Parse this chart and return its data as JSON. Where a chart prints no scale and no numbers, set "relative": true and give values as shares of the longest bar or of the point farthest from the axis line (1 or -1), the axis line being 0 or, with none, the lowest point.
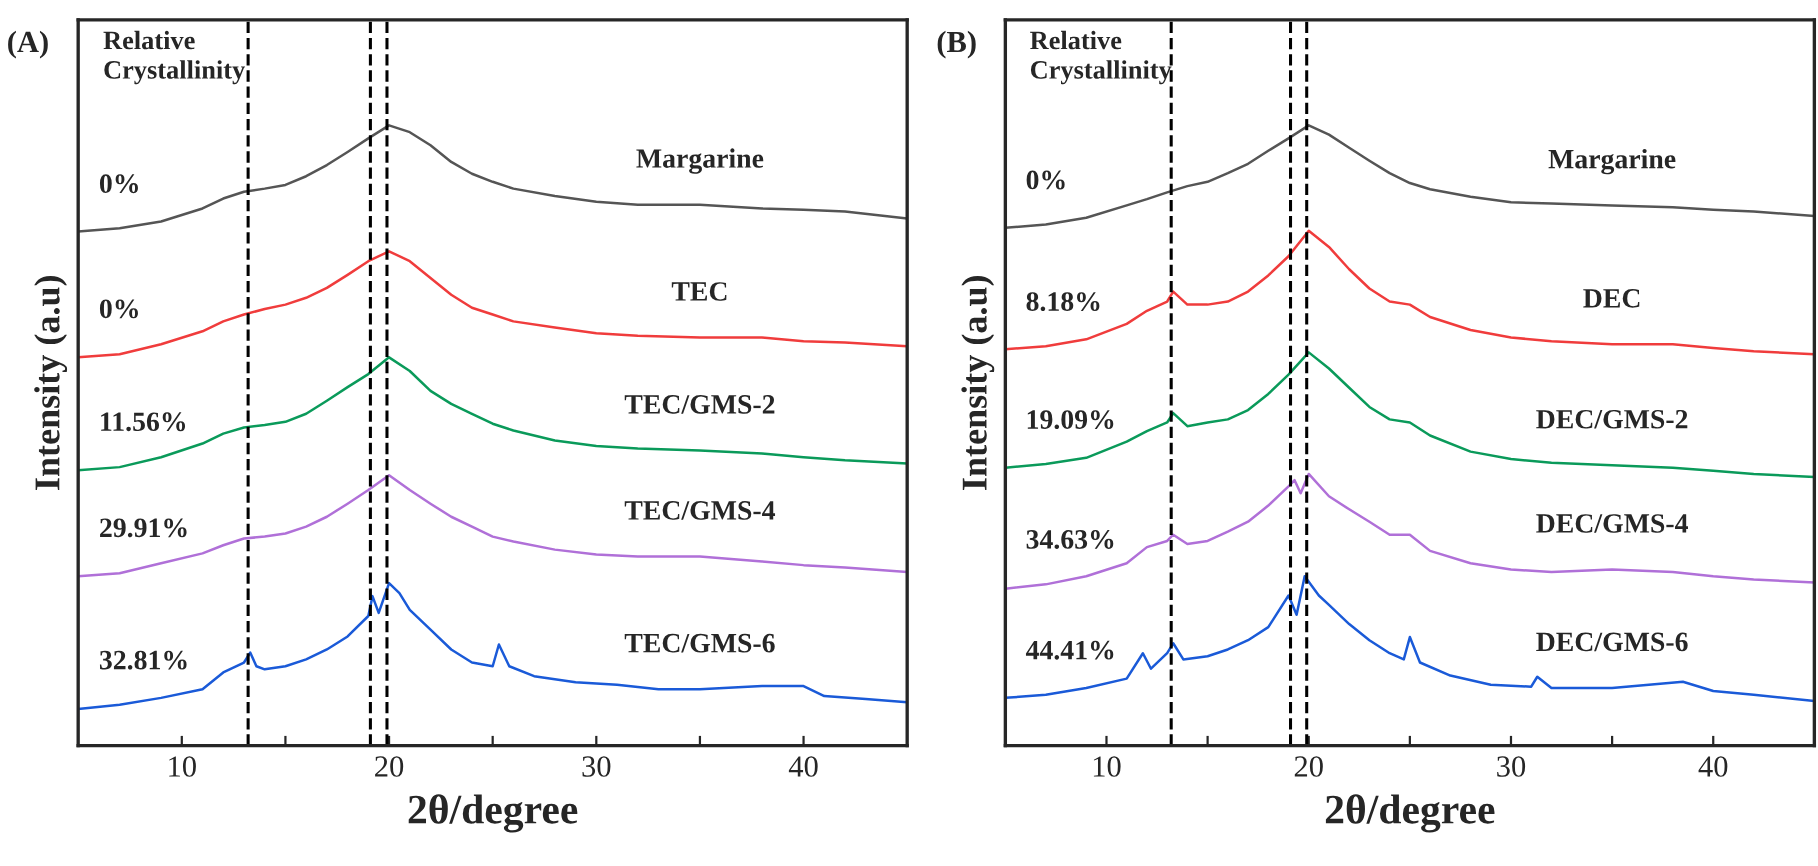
{
  "chart_data": [
    {
      "type": "line",
      "title": "(A)",
      "xlabel": "2θ/degree",
      "ylabel": "Intensity (a.u)",
      "relative": true,
      "xlim": [
        5,
        45
      ],
      "xticks": [
        10,
        {
          "value": 15,
          "label": null
        },
        20,
        {
          "value": 25,
          "label": null
        },
        30,
        {
          "value": 35,
          "label": null
        },
        40
      ],
      "grid": false,
      "legend": false,
      "tick_labels": "x",
      "ref_lines": [
        {
          "axis": "x",
          "value": 13.2,
          "color": "#000000",
          "line_style": "dashed"
        },
        {
          "axis": "x",
          "value": 19.1,
          "color": "#000000",
          "line_style": "dashed"
        },
        {
          "axis": "x",
          "value": 19.9,
          "color": "#000000",
          "line_style": "dashed"
        }
      ],
      "annotations": [
        "Relative\nCrystallinity",
        "0%",
        "0%",
        "11.56%",
        "29.91%",
        "32.81%"
      ],
      "series": [
        {
          "name": "Margarine",
          "color": "#555555",
          "x": [
            5,
            7,
            9,
            11,
            12,
            13,
            14,
            15,
            16,
            17,
            18,
            19,
            20,
            21,
            22,
            23,
            24,
            25,
            26,
            28,
            30,
            32,
            35,
            38,
            40,
            42,
            45
          ],
          "values": [
            0.829,
            0.834,
            0.845,
            0.866,
            0.882,
            0.893,
            0.898,
            0.904,
            0.918,
            0.936,
            0.957,
            0.979,
            1.0,
            0.989,
            0.968,
            0.941,
            0.922,
            0.909,
            0.898,
            0.886,
            0.877,
            0.872,
            0.872,
            0.866,
            0.864,
            0.861,
            0.85
          ]
        },
        {
          "name": "TEC",
          "color": "#f03c3c",
          "x": [
            5,
            7,
            9,
            11,
            12,
            13,
            14,
            15,
            16,
            17,
            18,
            19,
            20,
            21,
            22,
            23,
            24,
            25,
            26,
            28,
            30,
            32,
            35,
            38,
            40,
            42,
            45
          ],
          "values": [
            0.626,
            0.631,
            0.647,
            0.668,
            0.684,
            0.695,
            0.704,
            0.711,
            0.722,
            0.738,
            0.759,
            0.781,
            0.797,
            0.781,
            0.754,
            0.727,
            0.706,
            0.695,
            0.684,
            0.674,
            0.665,
            0.661,
            0.658,
            0.658,
            0.652,
            0.65,
            0.644
          ]
        },
        {
          "name": "TEC/GMS-2",
          "color": "#0a9a5a",
          "x": [
            5,
            7,
            9,
            11,
            12,
            13,
            14,
            15,
            16,
            17,
            18,
            19,
            20,
            21,
            22,
            23,
            24,
            25,
            26,
            28,
            30,
            32,
            35,
            38,
            40,
            42,
            45
          ],
          "values": [
            0.444,
            0.449,
            0.465,
            0.487,
            0.503,
            0.513,
            0.517,
            0.522,
            0.535,
            0.556,
            0.578,
            0.599,
            0.626,
            0.604,
            0.572,
            0.551,
            0.535,
            0.519,
            0.508,
            0.492,
            0.483,
            0.479,
            0.476,
            0.471,
            0.465,
            0.46,
            0.455
          ]
        },
        {
          "name": "TEC/GMS-4",
          "color": "#b070d8",
          "x": [
            5,
            7,
            9,
            11,
            12,
            13,
            14,
            15,
            16,
            17,
            18,
            19,
            20,
            21,
            22,
            23,
            24,
            25,
            26,
            28,
            30,
            32,
            35,
            38,
            40,
            42,
            45
          ],
          "values": [
            0.273,
            0.278,
            0.294,
            0.31,
            0.323,
            0.334,
            0.337,
            0.342,
            0.353,
            0.369,
            0.39,
            0.412,
            0.436,
            0.412,
            0.39,
            0.369,
            0.353,
            0.337,
            0.329,
            0.316,
            0.308,
            0.305,
            0.305,
            0.297,
            0.291,
            0.287,
            0.28
          ]
        },
        {
          "name": "TEC/GMS-6",
          "color": "#1a5ad8",
          "x": [
            5,
            7,
            9,
            11,
            12,
            13,
            13.3,
            13.6,
            14,
            15,
            16,
            17,
            18,
            19,
            19.2,
            19.5,
            20,
            20.5,
            21,
            22,
            23,
            24,
            25,
            25.3,
            25.8,
            27,
            29,
            31,
            33,
            35,
            38,
            40,
            41,
            43,
            45
          ],
          "values": [
            0.059,
            0.066,
            0.077,
            0.091,
            0.118,
            0.134,
            0.15,
            0.128,
            0.123,
            0.128,
            0.139,
            0.155,
            0.176,
            0.209,
            0.241,
            0.214,
            0.262,
            0.246,
            0.219,
            0.187,
            0.155,
            0.134,
            0.128,
            0.163,
            0.128,
            0.112,
            0.102,
            0.098,
            0.091,
            0.091,
            0.096,
            0.096,
            0.08,
            0.075,
            0.07
          ]
        }
      ]
    },
    {
      "type": "line",
      "title": "(B)",
      "xlabel": "2θ/degree",
      "ylabel": "Intensity (a.u)",
      "relative": true,
      "xlim": [
        5,
        45
      ],
      "xticks": [
        10,
        {
          "value": 15,
          "label": null
        },
        20,
        {
          "value": 25,
          "label": null
        },
        30,
        {
          "value": 35,
          "label": null
        },
        40
      ],
      "grid": false,
      "legend": false,
      "tick_labels": "x",
      "ref_lines": [
        {
          "axis": "x",
          "value": 13.2,
          "color": "#000000",
          "line_style": "dashed"
        },
        {
          "axis": "x",
          "value": 19.1,
          "color": "#000000",
          "line_style": "dashed"
        },
        {
          "axis": "x",
          "value": 19.9,
          "color": "#000000",
          "line_style": "dashed"
        }
      ],
      "annotations": [
        "Relative\nCrystallinity",
        "0%",
        "8.18%",
        "19.09%",
        "34.63%",
        "44.41%"
      ],
      "series": [
        {
          "name": "Margarine",
          "color": "#555555",
          "x": [
            5,
            7,
            9,
            11,
            12,
            13,
            14,
            15,
            16,
            17,
            18,
            19,
            20,
            21,
            22,
            23,
            24,
            25,
            26,
            28,
            30,
            32,
            35,
            38,
            40,
            42,
            45
          ],
          "values": [
            0.835,
            0.84,
            0.851,
            0.871,
            0.881,
            0.892,
            0.902,
            0.909,
            0.923,
            0.938,
            0.959,
            0.979,
            1.0,
            0.985,
            0.964,
            0.943,
            0.923,
            0.907,
            0.897,
            0.885,
            0.876,
            0.874,
            0.871,
            0.868,
            0.864,
            0.861,
            0.854
          ]
        },
        {
          "name": "DEC",
          "color": "#f03c3c",
          "x": [
            5,
            7,
            9,
            11,
            12,
            13,
            13.3,
            14,
            15,
            16,
            17,
            18,
            19,
            20,
            21,
            22,
            23,
            24,
            25,
            26,
            28,
            30,
            32,
            35,
            38,
            40,
            42,
            45
          ],
          "values": [
            0.639,
            0.644,
            0.655,
            0.68,
            0.701,
            0.716,
            0.732,
            0.711,
            0.711,
            0.716,
            0.732,
            0.758,
            0.789,
            0.83,
            0.804,
            0.768,
            0.737,
            0.716,
            0.711,
            0.691,
            0.67,
            0.658,
            0.652,
            0.647,
            0.647,
            0.641,
            0.636,
            0.631
          ]
        },
        {
          "name": "DEC/GMS-2",
          "color": "#0a9a5a",
          "x": [
            5,
            7,
            9,
            11,
            12,
            13,
            13.3,
            14,
            15,
            16,
            17,
            18,
            19,
            20,
            21,
            22,
            23,
            24,
            25,
            26,
            28,
            30,
            32,
            35,
            38,
            40,
            42,
            45
          ],
          "values": [
            0.448,
            0.454,
            0.464,
            0.49,
            0.507,
            0.521,
            0.536,
            0.515,
            0.521,
            0.526,
            0.541,
            0.567,
            0.598,
            0.634,
            0.608,
            0.577,
            0.546,
            0.526,
            0.521,
            0.5,
            0.474,
            0.462,
            0.456,
            0.452,
            0.448,
            0.443,
            0.438,
            0.433
          ]
        },
        {
          "name": "DEC/GMS-4",
          "color": "#b070d8",
          "x": [
            5,
            7,
            9,
            11,
            12,
            13,
            13.3,
            14,
            15,
            16,
            17,
            18,
            19,
            19.3,
            19.6,
            20,
            21,
            22,
            23,
            24,
            25,
            26,
            28,
            30,
            32,
            35,
            38,
            40,
            42,
            45
          ],
          "values": [
            0.253,
            0.26,
            0.273,
            0.294,
            0.32,
            0.33,
            0.34,
            0.325,
            0.33,
            0.345,
            0.361,
            0.387,
            0.418,
            0.428,
            0.407,
            0.438,
            0.402,
            0.381,
            0.361,
            0.34,
            0.34,
            0.314,
            0.294,
            0.284,
            0.28,
            0.284,
            0.28,
            0.273,
            0.268,
            0.263
          ]
        },
        {
          "name": "DEC/GMS-6",
          "color": "#1a5ad8",
          "x": [
            5,
            7,
            9,
            11,
            11.8,
            12.2,
            13,
            13.3,
            13.8,
            15,
            16,
            17,
            18,
            19,
            19.4,
            19.8,
            20.5,
            21,
            22,
            23,
            24,
            24.7,
            25,
            25.5,
            27,
            29,
            31,
            31.3,
            32,
            35,
            38.5,
            40,
            42,
            45
          ],
          "values": [
            0.077,
            0.082,
            0.093,
            0.108,
            0.149,
            0.124,
            0.149,
            0.165,
            0.139,
            0.144,
            0.155,
            0.17,
            0.191,
            0.242,
            0.211,
            0.273,
            0.242,
            0.227,
            0.196,
            0.17,
            0.149,
            0.139,
            0.175,
            0.134,
            0.113,
            0.098,
            0.095,
            0.111,
            0.093,
            0.093,
            0.103,
            0.088,
            0.082,
            0.072
          ]
        }
      ]
    }
  ]
}
